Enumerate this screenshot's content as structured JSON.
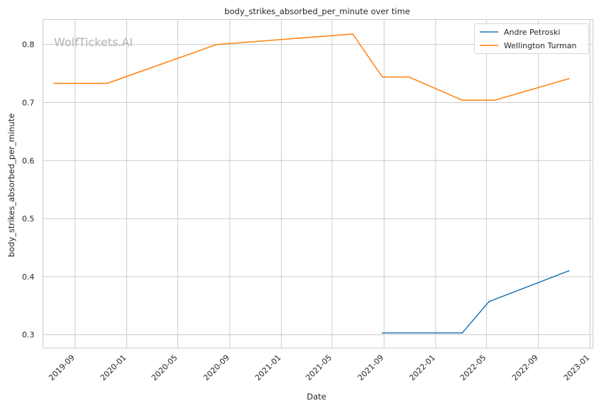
{
  "watermark": "WolfTickets.AI",
  "chart_data": {
    "type": "line",
    "title": "body_strikes_absorbed_per_minute over time",
    "xlabel": "Date",
    "ylabel": "body_strikes_absorbed_per_minute",
    "x_ticks": [
      "2019-09",
      "2020-01",
      "2020-05",
      "2020-09",
      "2021-01",
      "2021-05",
      "2021-09",
      "2022-01",
      "2022-05",
      "2022-09",
      "2023-01"
    ],
    "y_ticks": [
      "0.3",
      "0.4",
      "0.5",
      "0.6",
      "0.7",
      "0.8"
    ],
    "xlim": [
      "2019-06-17",
      "2023-01-08"
    ],
    "ylim": [
      0.277,
      0.843
    ],
    "grid": true,
    "legend_position": "top-right",
    "series": [
      {
        "name": "Andre Petroski",
        "color": "#1f77b4",
        "points": [
          {
            "x": "2021-08-28",
            "y": 0.303
          },
          {
            "x": "2022-03-05",
            "y": 0.303
          },
          {
            "x": "2022-05-07",
            "y": 0.357
          },
          {
            "x": "2022-11-12",
            "y": 0.41
          }
        ]
      },
      {
        "name": "Wellington Turman",
        "color": "#ff7f0e",
        "points": [
          {
            "x": "2019-07-13",
            "y": 0.733
          },
          {
            "x": "2019-11-16",
            "y": 0.733
          },
          {
            "x": "2020-08-01",
            "y": 0.8
          },
          {
            "x": "2021-06-19",
            "y": 0.818
          },
          {
            "x": "2021-08-28",
            "y": 0.744
          },
          {
            "x": "2021-10-30",
            "y": 0.744
          },
          {
            "x": "2022-03-05",
            "y": 0.704
          },
          {
            "x": "2022-05-21",
            "y": 0.704
          },
          {
            "x": "2022-11-12",
            "y": 0.741
          }
        ]
      }
    ]
  }
}
